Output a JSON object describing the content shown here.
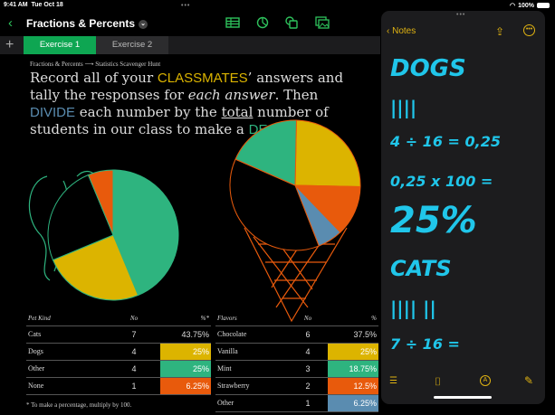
{
  "status": {
    "time": "9:41 AM",
    "date": "Tue Oct 18",
    "battery": "100%"
  },
  "toolbar": {
    "title": "Fractions & Percents",
    "icons": [
      "table-icon",
      "chart-icon",
      "shapes-icon",
      "media-icon"
    ]
  },
  "tabs": [
    {
      "label": "Exercise 1",
      "active": true
    },
    {
      "label": "Exercise 2",
      "active": false
    }
  ],
  "breadcrumb": {
    "from": "Fractions & Percents",
    "arrow": "⟶",
    "to": "Statistics Scavenger Hunt"
  },
  "instructions": {
    "p1": "Record all of your ",
    "k1": "CLASSMATES",
    "p2": "’ answers and tally the responses for ",
    "em": "each answer",
    "p3": ". Then ",
    "k2": "DIVIDE",
    "p4": " each number by the ",
    "u": "total",
    "p5": " number of students in our class to make a ",
    "k3": "DECIMAL",
    "p6": "."
  },
  "colors": {
    "green": "#2eb47f",
    "yellow": "#dcb400",
    "orange": "#e85a0c",
    "blue": "#5a8cb0",
    "accent": "#0ea652",
    "notes_accent": "#e0b312",
    "ink": "#20c6ea"
  },
  "pets": {
    "headers": [
      "Pet Kind",
      "No",
      "%*"
    ],
    "rows": [
      [
        "Cats",
        "7",
        "43.75%"
      ],
      [
        "Dogs",
        "4",
        "25%"
      ],
      [
        "Other",
        "4",
        "25%"
      ],
      [
        "None",
        "1",
        "6.25%"
      ]
    ],
    "footnote": "* To make a percentage, multiply by 100."
  },
  "flavors": {
    "headers": [
      "Flavors",
      "No",
      "%"
    ],
    "rows": [
      [
        "Chocolate",
        "6",
        "37.5%"
      ],
      [
        "Vanilla",
        "4",
        "25%"
      ],
      [
        "Mint",
        "3",
        "18.75%"
      ],
      [
        "Strawberry",
        "2",
        "12.5%"
      ],
      [
        "Other",
        "1",
        "6.25%"
      ]
    ]
  },
  "notes": {
    "back": "Notes",
    "lines": [
      "DOGS",
      "||||",
      "4 ÷ 16 = 0,25",
      "0,25 x 100 =",
      "25%",
      "CATS",
      "|||| ||",
      "7 ÷ 16 ="
    ]
  }
}
